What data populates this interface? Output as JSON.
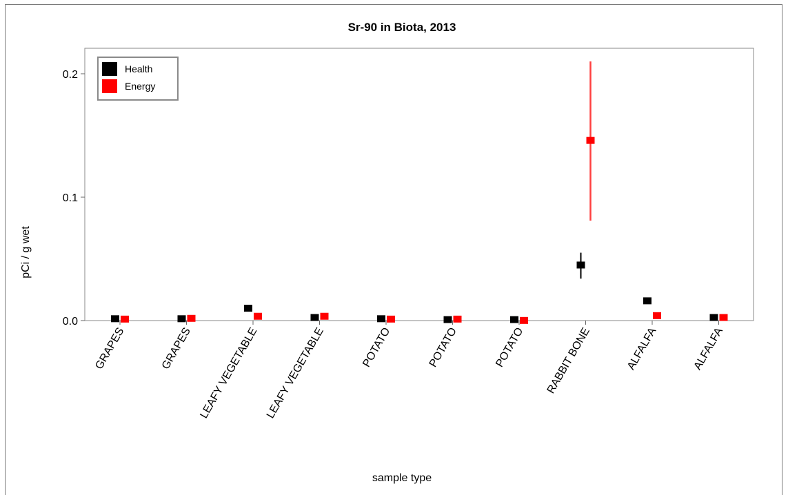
{
  "chart_data": {
    "type": "scatter",
    "title": "Sr-90 in Biota, 2013",
    "xlabel": "sample type",
    "ylabel": "pCi / g  wet",
    "ylim": [
      0,
      0.22
    ],
    "yticks": [
      0.0,
      0.1,
      0.2
    ],
    "ytick_labels": [
      "0.0",
      "0.1",
      "0.2"
    ],
    "categories": [
      "GRAPES",
      "GRAPES",
      "LEAFY VEGETABLE",
      "LEAFY VEGETABLE",
      "POTATO",
      "POTATO",
      "POTATO",
      "RABBIT BONE",
      "ALFALFA",
      "ALFALFA"
    ],
    "legend_position": "top-left",
    "grid": false,
    "series": [
      {
        "name": "Health",
        "color": "#000000",
        "values": [
          0.0015,
          0.0015,
          0.01,
          0.0025,
          0.0015,
          0.0008,
          0.0008,
          0.045,
          0.016,
          0.0025
        ],
        "err_low": [
          null,
          null,
          null,
          null,
          null,
          null,
          null,
          0.034,
          null,
          null
        ],
        "err_high": [
          null,
          null,
          null,
          null,
          null,
          null,
          null,
          0.055,
          null,
          null
        ]
      },
      {
        "name": "Energy",
        "color": "#ff0000",
        "values": [
          0.0012,
          0.0018,
          0.0035,
          0.0035,
          0.0012,
          0.0012,
          0.0001,
          0.146,
          0.004,
          0.0025
        ],
        "err_low": [
          null,
          null,
          null,
          null,
          null,
          null,
          null,
          0.081,
          null,
          null
        ],
        "err_high": [
          null,
          null,
          null,
          null,
          null,
          null,
          null,
          0.21,
          null,
          null
        ]
      }
    ]
  }
}
